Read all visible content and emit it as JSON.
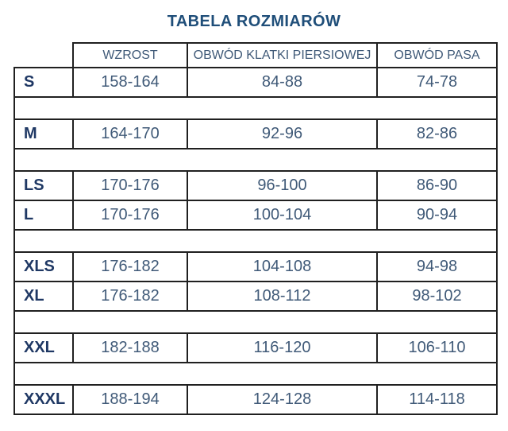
{
  "title": "TABELA ROZMIARÓW",
  "colors": {
    "title_text": "#1f4e79",
    "size_label_text": "#1f3864",
    "cell_text": "#405a78",
    "border": "#202020",
    "background": "#ffffff"
  },
  "table": {
    "columns": [
      "",
      "WZROST",
      "OBWÓD KLATKI PIERSIOWEJ",
      "OBWÓD PASA"
    ],
    "rows": [
      {
        "type": "data",
        "cells": [
          "S",
          "158-164",
          "84-88",
          "74-78"
        ]
      },
      {
        "type": "spacer"
      },
      {
        "type": "data",
        "cells": [
          "M",
          "164-170",
          "92-96",
          "82-86"
        ]
      },
      {
        "type": "spacer"
      },
      {
        "type": "data",
        "cells": [
          "LS",
          "170-176",
          "96-100",
          "86-90"
        ]
      },
      {
        "type": "data",
        "cells": [
          "L",
          "170-176",
          "100-104",
          "90-94"
        ]
      },
      {
        "type": "spacer"
      },
      {
        "type": "data",
        "cells": [
          "XLS",
          "176-182",
          "104-108",
          "94-98"
        ]
      },
      {
        "type": "data",
        "cells": [
          "XL",
          "176-182",
          "108-112",
          "98-102"
        ]
      },
      {
        "type": "spacer"
      },
      {
        "type": "data",
        "cells": [
          "XXL",
          "182-188",
          "116-120",
          "106-110"
        ]
      },
      {
        "type": "spacer"
      },
      {
        "type": "data",
        "cells": [
          "XXXL",
          "188-194",
          "124-128",
          "114-118"
        ]
      }
    ]
  }
}
